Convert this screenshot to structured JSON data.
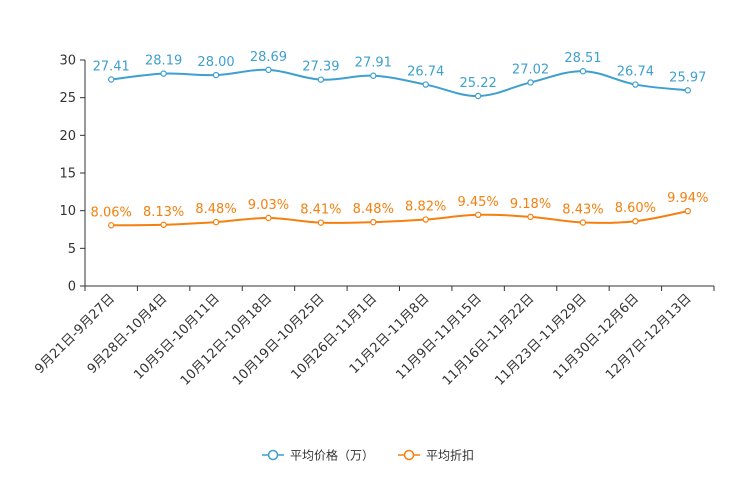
{
  "chart_data": {
    "type": "line",
    "categories": [
      "9月21日-9月27日",
      "9月28日-10月4日",
      "10月5日-10月11日",
      "10月12日-10月18日",
      "10月19日-10月25日",
      "10月26日-11月1日",
      "11月2日-11月8日",
      "11月9日-11月15日",
      "11月16日-11月22日",
      "11月23日-11月29日",
      "11月30日-12月6日",
      "12月7日-12月13日"
    ],
    "ylim": [
      0,
      30
    ],
    "yticks": [
      0,
      5,
      10,
      15,
      20,
      25,
      30
    ],
    "grid": false,
    "legend_position": "bottom-center",
    "series": [
      {
        "name": "平均价格（万）",
        "color": "#3ea0cf",
        "values": [
          27.41,
          28.19,
          28.0,
          28.69,
          27.39,
          27.91,
          26.74,
          25.22,
          27.02,
          28.51,
          26.74,
          25.97
        ],
        "labels": [
          "27.41",
          "28.19",
          "28.00",
          "28.69",
          "27.39",
          "27.91",
          "26.74",
          "25.22",
          "27.02",
          "28.51",
          "26.74",
          "25.97"
        ]
      },
      {
        "name": "平均折扣",
        "color": "#f5800f",
        "values": [
          8.06,
          8.13,
          8.48,
          9.03,
          8.41,
          8.48,
          8.82,
          9.45,
          9.18,
          8.43,
          8.6,
          9.94
        ],
        "labels": [
          "8.06%",
          "8.13%",
          "8.48%",
          "9.03%",
          "8.41%",
          "8.48%",
          "8.82%",
          "9.45%",
          "9.18%",
          "8.43%",
          "8.60%",
          "9.94%"
        ]
      }
    ]
  }
}
